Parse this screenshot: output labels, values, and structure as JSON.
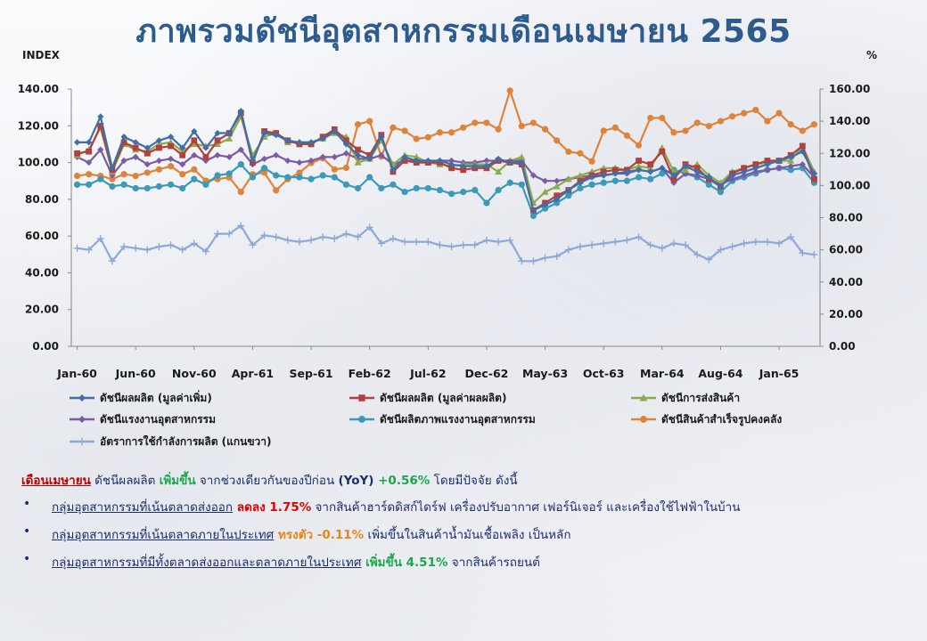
{
  "title": "ภาพรวมดัชนีอุตสาหกรรมเดือนเมษายน 2565",
  "chart_data": {
    "type": "line",
    "ylabel_left": "INDEX",
    "ylabel_right": "%",
    "ylim_left": [
      0,
      140
    ],
    "ylim_right": [
      0,
      160
    ],
    "yticks_left": [
      "0.00",
      "20.00",
      "40.00",
      "60.00",
      "80.00",
      "100.00",
      "120.00",
      "140.00"
    ],
    "yticks_right": [
      "0.00",
      "20.00",
      "40.00",
      "60.00",
      "80.00",
      "100.00",
      "120.00",
      "140.00",
      "160.00"
    ],
    "xtick_labels": [
      "Jan-60",
      "Jun-60",
      "Nov-60",
      "Apr-61",
      "Sep-61",
      "Feb-62",
      "Jul-62",
      "Dec-62",
      "May-63",
      "Oct-63",
      "Mar-64",
      "Aug-64",
      "Jan-65"
    ],
    "xtick_every": 5,
    "grid": false,
    "legend": "bottom",
    "n_points": 64,
    "series": [
      {
        "name": "ดัชนีผลผลิต (มูลค่าเพิ่ม)",
        "color": "#3f6fa8",
        "marker": "diamond",
        "axis": "left",
        "values": [
          111,
          111,
          125,
          97,
          114,
          111,
          108,
          112,
          114,
          108,
          117,
          108,
          116,
          116,
          128,
          101,
          116,
          115,
          112,
          111,
          111,
          113,
          117,
          110,
          104,
          102,
          114,
          96,
          103,
          101,
          101,
          101,
          99,
          98,
          98,
          98,
          102,
          100,
          100,
          74,
          77,
          80,
          85,
          89,
          92,
          93,
          94,
          95,
          96,
          95,
          97,
          93,
          98,
          95,
          92,
          87,
          93,
          95,
          97,
          99,
          101,
          103,
          106,
          94
        ]
      },
      {
        "name": "ดัชนีผลผลิต (มูลค่าผลผลิต)",
        "color": "#b0413e",
        "marker": "square",
        "axis": "left",
        "values": [
          105,
          106,
          120,
          96,
          111,
          108,
          105,
          108,
          109,
          104,
          112,
          103,
          112,
          116,
          127,
          100,
          117,
          116,
          112,
          110,
          110,
          114,
          118,
          112,
          107,
          104,
          115,
          95,
          101,
          100,
          100,
          100,
          97,
          96,
          97,
          97,
          101,
          100,
          99,
          74,
          78,
          82,
          85,
          90,
          93,
          95,
          96,
          96,
          101,
          99,
          106,
          91,
          99,
          97,
          91,
          87,
          94,
          97,
          99,
          101,
          101,
          104,
          109,
          91
        ]
      },
      {
        "name": "ดัชนีการส่งสินค้า",
        "color": "#8faa4b",
        "marker": "triangle",
        "axis": "left",
        "values": [
          104,
          107,
          119,
          95,
          110,
          107,
          106,
          110,
          111,
          106,
          110,
          109,
          110,
          113,
          125,
          104,
          114,
          116,
          111,
          111,
          111,
          113,
          116,
          114,
          100,
          102,
          112,
          99,
          104,
          103,
          100,
          99,
          98,
          99,
          99,
          99,
          95,
          101,
          103,
          78,
          84,
          87,
          91,
          93,
          95,
          97,
          97,
          96,
          98,
          97,
          108,
          95,
          96,
          99,
          93,
          89,
          95,
          97,
          99,
          100,
          101,
          101,
          109,
          95
        ]
      },
      {
        "name": "ดัชนีแรงงานอุตสาหกรรม",
        "color": "#7b5aa6",
        "marker": "diamond",
        "axis": "left",
        "values": [
          103,
          100,
          107,
          93,
          101,
          103,
          99,
          101,
          102,
          99,
          104,
          101,
          104,
          103,
          107,
          99,
          102,
          104,
          101,
          100,
          101,
          103,
          103,
          105,
          102,
          102,
          104,
          99,
          101,
          101,
          100,
          101,
          101,
          100,
          100,
          101,
          101,
          101,
          101,
          93,
          90,
          90,
          91,
          92,
          93,
          93,
          94,
          94,
          96,
          95,
          97,
          89,
          94,
          93,
          91,
          88,
          91,
          93,
          95,
          96,
          97,
          98,
          99,
          92
        ]
      },
      {
        "name": "ดัชนีผลิตภาพแรงงานอุตสาหกรรม",
        "color": "#3b9ab7",
        "marker": "circle",
        "axis": "left",
        "values": [
          88,
          88,
          91,
          87,
          88,
          86,
          86,
          87,
          88,
          86,
          91,
          88,
          93,
          94,
          99,
          92,
          97,
          93,
          92,
          92,
          91,
          93,
          92,
          88,
          86,
          92,
          86,
          88,
          84,
          86,
          86,
          85,
          83,
          84,
          85,
          78,
          85,
          89,
          88,
          71,
          75,
          78,
          82,
          86,
          88,
          89,
          90,
          90,
          92,
          91,
          94,
          96,
          94,
          92,
          88,
          84,
          90,
          92,
          94,
          96,
          97,
          96,
          97,
          89
        ]
      },
      {
        "name": "ดัชนีสินค้าสำเร็จรูปคงคลัง",
        "color": "#e0833a",
        "marker": "circle",
        "axis": "right",
        "values": [
          106,
          107,
          106,
          104,
          107,
          106,
          108,
          110,
          112,
          107,
          110,
          103,
          104,
          105,
          96,
          107,
          108,
          97,
          104,
          108,
          114,
          117,
          110,
          111,
          138,
          140,
          118,
          136,
          134,
          129,
          130,
          133,
          133,
          136,
          139,
          139,
          135,
          159,
          137,
          139,
          135,
          128,
          121,
          120,
          115,
          134,
          136,
          131,
          125,
          142,
          142,
          133,
          134,
          139,
          137,
          140,
          143,
          145,
          147,
          140,
          145,
          138,
          134,
          138
        ]
      },
      {
        "name": "อัตราการใช้กำลังการผลิต (แกนขวา)",
        "color": "#8da9d8",
        "marker": "star",
        "axis": "right",
        "values": [
          61,
          60,
          67,
          53,
          62,
          61,
          60,
          62,
          63,
          60,
          64,
          59,
          70,
          70,
          75,
          63,
          69,
          68,
          66,
          65,
          66,
          68,
          67,
          70,
          68,
          74,
          64,
          67,
          65,
          65,
          65,
          63,
          62,
          63,
          63,
          66,
          65,
          66,
          53,
          53,
          55,
          56,
          60,
          62,
          63,
          64,
          65,
          66,
          68,
          63,
          61,
          64,
          63,
          57,
          54,
          60,
          62,
          64,
          65,
          65,
          64,
          68,
          58,
          57
        ]
      }
    ]
  },
  "summary": {
    "headline_month": "เดือนเมษายน",
    "headline_text1": " ดัชนีผลผลิต ",
    "headline_trend": "เพิ่มขึ้น",
    "headline_text2": " จากช่วงเดียวกันของปีก่อน ",
    "headline_yoy": "(YoY)",
    "headline_value": " +0.56%",
    "headline_text3": " โดยมีปัจจัย ดังนี้",
    "bullets": [
      {
        "group": "กลุ่มอุตสาหกรรมที่เน้นตลาดส่งออก",
        "trend": " ลดลง 1.75%",
        "detail": " จากสินค้าฮาร์ดดิสก์ไดร์ฟ เครื่องปรับอากาศ เฟอร์นิเจอร์ และเครื่องใช้ไฟฟ้าในบ้าน"
      },
      {
        "group": "กลุ่มอุตสาหกรรมที่เน้นตลาดภายในประเทศ",
        "trend": " ทรงตัว -0.11%",
        "detail": " เพิ่มขึ้นในสินค้าน้ำมันเชื้อเพลิง เป็นหลัก"
      },
      {
        "group": "กลุ่มอุตสาหกรรมที่มีทั้งตลาดส่งออกและตลาดภายในประเทศ",
        "trend": " เพิ่มขึ้น 4.51%",
        "detail": " จากสินค้ารถยนต์"
      }
    ]
  }
}
